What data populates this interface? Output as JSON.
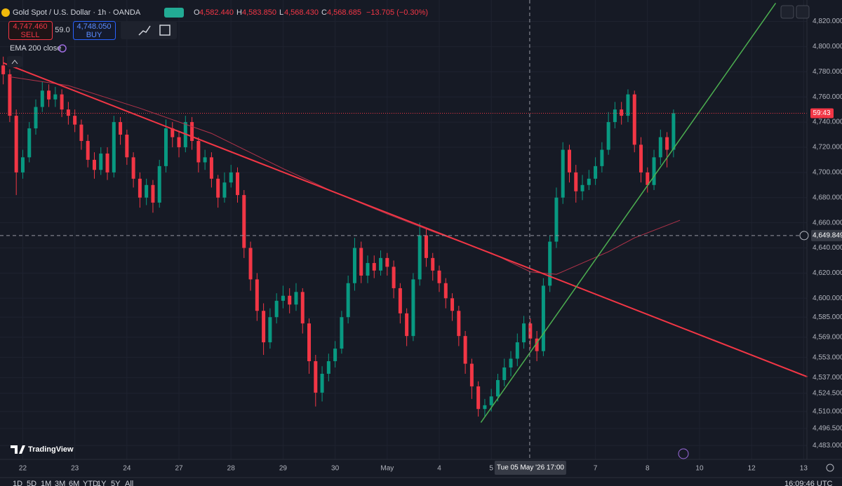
{
  "overlay": {
    "title": "Gold Spot / U.S. Dollar · 1h · OANDA",
    "o_label": "O",
    "o_value": "4,582.440",
    "h_label": "H",
    "h_value": "4,583.850",
    "l_label": "L",
    "l_value": "4,568.430",
    "c_label": "C",
    "c_value": "4,568.685",
    "change": "−13.705 (−0.30%)",
    "sell_price": "4,747.460",
    "sell_label": "SELL",
    "spread": "59.0",
    "buy_price": "4,748.050",
    "buy_label": "BUY",
    "indicator": "EMA 200 close",
    "logo": "TradingView",
    "timeframes": [
      "1D",
      "5D",
      "1M",
      "3M",
      "6M",
      "YTD",
      "1Y",
      "5Y",
      "All"
    ],
    "clock": "16:09:46 UTC"
  },
  "chart_data": {
    "type": "candlestick",
    "up_color": "#089981",
    "down_color": "#f23645",
    "grid": true,
    "x": [
      -3,
      -2,
      -1,
      0,
      1,
      2,
      3,
      4,
      5,
      6,
      7,
      8,
      9,
      10,
      11,
      12,
      13,
      14,
      15,
      16,
      17,
      18,
      19,
      20,
      21,
      22,
      23,
      24,
      25,
      26,
      27,
      28,
      29,
      30,
      31,
      32,
      33,
      34,
      35,
      36,
      37,
      38,
      39,
      40,
      41,
      42,
      43,
      44,
      45,
      46,
      47,
      48,
      49,
      50,
      51,
      52,
      53,
      54,
      55,
      56,
      57,
      58,
      59,
      60,
      61,
      62,
      63,
      64,
      65,
      66,
      67,
      68,
      69,
      70,
      71,
      72,
      73,
      74,
      75,
      76,
      77,
      78,
      79,
      80,
      81,
      82,
      83,
      84,
      85,
      86,
      87,
      88,
      89,
      90,
      91,
      92,
      93,
      94,
      95,
      96,
      97,
      98,
      99,
      100
    ],
    "open": [
      4785,
      4778,
      4745,
      4700,
      4712,
      4735,
      4752,
      4765,
      4758,
      4762,
      4750,
      4745,
      4738,
      4725,
      4710,
      4702,
      4715,
      4700,
      4740,
      4730,
      4712,
      4695,
      4680,
      4690,
      4676,
      4705,
      4735,
      4728,
      4720,
      4740,
      4725,
      4708,
      4712,
      4695,
      4680,
      4692,
      4700,
      4682,
      4640,
      4615,
      4590,
      4565,
      4585,
      4598,
      4602,
      4595,
      4605,
      4580,
      4550,
      4525,
      4540,
      4550,
      4560,
      4585,
      4612,
      4640,
      4618,
      4628,
      4622,
      4632,
      4625,
      4608,
      4588,
      4570,
      4615,
      4650,
      4632,
      4622,
      4612,
      4600,
      4590,
      4570,
      4548,
      4530,
      4512,
      4515,
      4522,
      4535,
      4545,
      4552,
      4565,
      4580,
      4568,
      4558,
      4610,
      4645,
      4680,
      4718,
      4700,
      4685,
      4690,
      4695,
      4705,
      4718,
      4740,
      4750,
      4745,
      4762,
      4722,
      4700,
      4690,
      4712,
      4728,
      4718
    ],
    "high": [
      4792,
      4782,
      4750,
      4718,
      4740,
      4758,
      4772,
      4770,
      4768,
      4766,
      4756,
      4750,
      4742,
      4730,
      4716,
      4720,
      4720,
      4745,
      4744,
      4734,
      4716,
      4700,
      4695,
      4694,
      4710,
      4742,
      4740,
      4732,
      4745,
      4744,
      4728,
      4718,
      4716,
      4698,
      4700,
      4706,
      4704,
      4686,
      4645,
      4620,
      4596,
      4592,
      4604,
      4610,
      4608,
      4612,
      4608,
      4584,
      4555,
      4546,
      4556,
      4566,
      4590,
      4618,
      4648,
      4645,
      4634,
      4634,
      4638,
      4636,
      4630,
      4612,
      4592,
      4620,
      4660,
      4655,
      4636,
      4626,
      4616,
      4604,
      4594,
      4574,
      4552,
      4534,
      4520,
      4528,
      4540,
      4552,
      4558,
      4572,
      4586,
      4584,
      4574,
      4616,
      4650,
      4688,
      4724,
      4722,
      4706,
      4698,
      4702,
      4712,
      4724,
      4748,
      4756,
      4756,
      4766,
      4765,
      4728,
      4704,
      4718,
      4734,
      4732,
      4750
    ],
    "low": [
      4770,
      4740,
      4682,
      4695,
      4708,
      4730,
      4748,
      4752,
      4752,
      4744,
      4738,
      4732,
      4718,
      4704,
      4695,
      4698,
      4694,
      4696,
      4722,
      4706,
      4688,
      4672,
      4674,
      4668,
      4672,
      4700,
      4720,
      4712,
      4716,
      4718,
      4700,
      4702,
      4688,
      4672,
      4676,
      4688,
      4676,
      4632,
      4606,
      4582,
      4555,
      4560,
      4580,
      4592,
      4588,
      4590,
      4572,
      4540,
      4514,
      4518,
      4534,
      4545,
      4556,
      4580,
      4606,
      4612,
      4612,
      4616,
      4618,
      4618,
      4600,
      4580,
      4562,
      4566,
      4610,
      4625,
      4614,
      4605,
      4592,
      4582,
      4562,
      4540,
      4520,
      4506,
      4506,
      4510,
      4518,
      4530,
      4538,
      4546,
      4560,
      4560,
      4550,
      4554,
      4605,
      4640,
      4675,
      4692,
      4676,
      4678,
      4686,
      4690,
      4700,
      4714,
      4735,
      4738,
      4740,
      4716,
      4692,
      4684,
      4686,
      4706,
      4704,
      4712
    ],
    "close": [
      4778,
      4745,
      4700,
      4712,
      4735,
      4752,
      4765,
      4758,
      4762,
      4750,
      4745,
      4738,
      4725,
      4710,
      4702,
      4715,
      4700,
      4740,
      4730,
      4712,
      4695,
      4680,
      4690,
      4676,
      4705,
      4735,
      4728,
      4720,
      4740,
      4725,
      4708,
      4712,
      4695,
      4680,
      4692,
      4700,
      4682,
      4640,
      4615,
      4590,
      4565,
      4585,
      4598,
      4602,
      4595,
      4605,
      4580,
      4550,
      4525,
      4540,
      4550,
      4560,
      4585,
      4612,
      4640,
      4618,
      4628,
      4622,
      4632,
      4625,
      4608,
      4588,
      4570,
      4615,
      4650,
      4632,
      4622,
      4612,
      4600,
      4590,
      4570,
      4548,
      4530,
      4512,
      4515,
      4522,
      4535,
      4545,
      4552,
      4565,
      4580,
      4568,
      4558,
      4610,
      4645,
      4680,
      4718,
      4700,
      4685,
      4690,
      4695,
      4705,
      4718,
      4740,
      4750,
      4745,
      4762,
      4722,
      4700,
      4690,
      4712,
      4728,
      4718,
      4747
    ],
    "ema": {
      "name": "EMA 200 close",
      "color": "#b2334a",
      "x": [
        -2,
        7,
        18,
        29,
        40,
        48,
        56,
        63,
        72,
        78,
        82,
        86,
        90,
        94,
        98,
        101
      ],
      "values": [
        4776,
        4769,
        4751,
        4731,
        4703,
        4684,
        4667,
        4653,
        4636,
        4621,
        4619,
        4628,
        4637,
        4648,
        4656,
        4662
      ]
    },
    "trendlines": [
      {
        "color": "#f23645",
        "points": [
          [
            -3,
            4787
          ],
          [
            120.6,
            4537.5
          ]
        ]
      },
      {
        "color": "#4caf50",
        "points": [
          [
            70.4,
            4501.3
          ],
          [
            115.7,
            4834.5
          ]
        ]
      }
    ],
    "countdown": "59:43",
    "crosshair": {
      "x": 77.9,
      "x_label": "Tue 05 May '26   17:00",
      "y": 4649.849,
      "y_label": "4,649.849"
    },
    "xlim": [
      -3.5,
      120.5
    ],
    "xticks": [
      {
        "value": 0,
        "label": "22"
      },
      {
        "value": 8,
        "label": "23"
      },
      {
        "value": 16,
        "label": "24"
      },
      {
        "value": 24,
        "label": "27"
      },
      {
        "value": 32,
        "label": "28"
      },
      {
        "value": 40,
        "label": "29"
      },
      {
        "value": 48,
        "label": "30"
      },
      {
        "value": 56,
        "label": "May"
      },
      {
        "value": 64,
        "label": "4"
      },
      {
        "value": 72,
        "label": "5"
      },
      {
        "value": 88,
        "label": "7"
      },
      {
        "value": 96,
        "label": "8"
      },
      {
        "value": 104,
        "label": "10"
      },
      {
        "value": 112,
        "label": "12"
      },
      {
        "value": 120,
        "label": "13"
      }
    ],
    "ylim": [
      4472,
      4837
    ],
    "yticks": [
      {
        "value": 4820,
        "label": "4,820.000"
      },
      {
        "value": 4800,
        "label": "4,800.000"
      },
      {
        "value": 4780,
        "label": "4,780.000"
      },
      {
        "value": 4760,
        "label": "4,760.000"
      },
      {
        "value": 4740,
        "label": "4,740.000"
      },
      {
        "value": 4720,
        "label": "4,720.000"
      },
      {
        "value": 4700,
        "label": "4,700.000"
      },
      {
        "value": 4680,
        "label": "4,680.000"
      },
      {
        "value": 4660,
        "label": "4,660.000"
      },
      {
        "value": 4640,
        "label": "4,640.000"
      },
      {
        "value": 4620,
        "label": "4,620.000"
      },
      {
        "value": 4600,
        "label": "4,600.000"
      },
      {
        "value": 4585,
        "label": "4,585.000"
      },
      {
        "value": 4569,
        "label": "4,569.000"
      },
      {
        "value": 4553,
        "label": "4,553.000"
      },
      {
        "value": 4537,
        "label": "4,537.000"
      },
      {
        "value": 4524.5,
        "label": "4,524.500"
      },
      {
        "value": 4510,
        "label": "4,510.000"
      },
      {
        "value": 4496.5,
        "label": "4,496.500"
      },
      {
        "value": 4483,
        "label": "4,483.000"
      }
    ]
  }
}
